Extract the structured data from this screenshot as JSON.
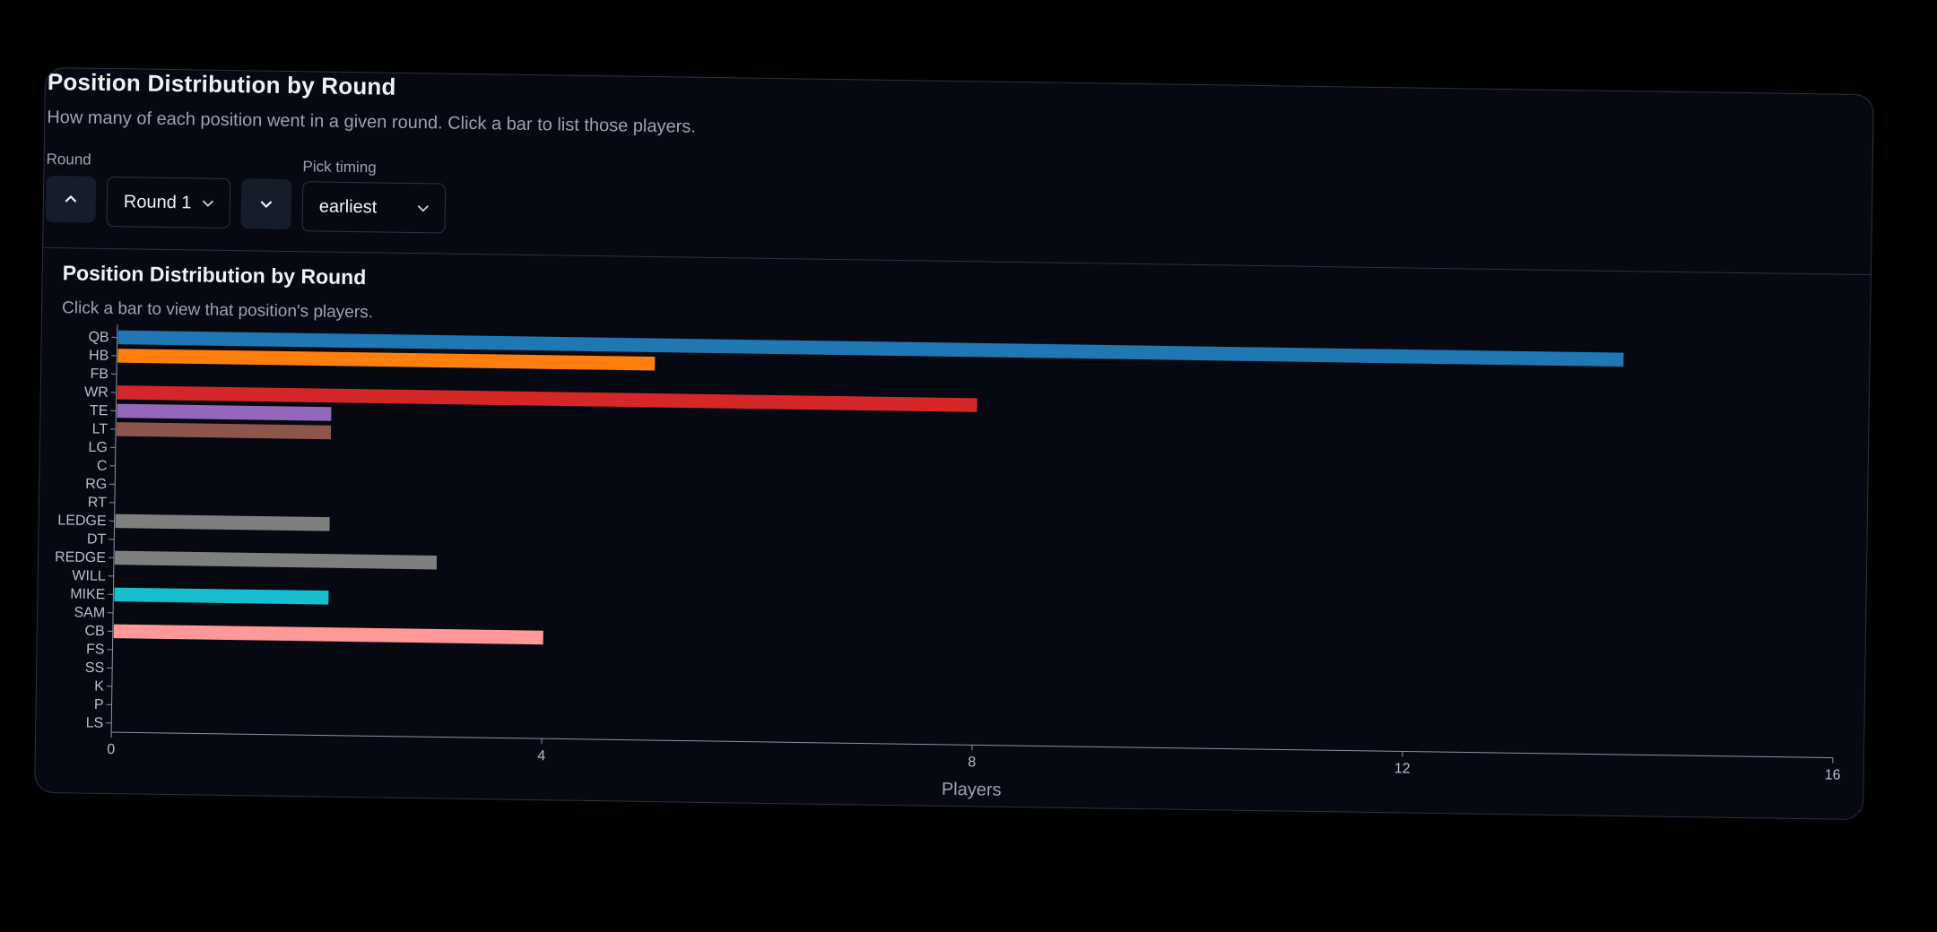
{
  "card": {
    "title": "Position Distribution by Round",
    "subtitle": "How many of each position went in a given round. Click a bar to list those players."
  },
  "controls": {
    "round_label": "Round",
    "round_value": "Round 1",
    "pick_timing_label": "Pick timing",
    "pick_timing_value": "earliest",
    "icons": {
      "prev": "chevron-up-icon",
      "next": "chevron-down-icon",
      "dropdown": "chevron-down-icon"
    }
  },
  "chart_data": {
    "type": "bar",
    "orientation": "horizontal",
    "title": "Position Distribution by Round",
    "subtitle": "Click a bar to view that position's players.",
    "xlabel": "Players",
    "ylabel": "",
    "xlim": [
      0,
      16
    ],
    "xticks": [
      0,
      4,
      8,
      12,
      16
    ],
    "grid": false,
    "categories": [
      "QB",
      "HB",
      "FB",
      "WR",
      "TE",
      "LT",
      "LG",
      "C",
      "RG",
      "RT",
      "LEDGE",
      "DT",
      "REDGE",
      "WILL",
      "MIKE",
      "SAM",
      "CB",
      "FS",
      "SS",
      "K",
      "P",
      "LS"
    ],
    "values": [
      14,
      5,
      0,
      8,
      2,
      2,
      0,
      0,
      0,
      0,
      2,
      0,
      3,
      0,
      2,
      0,
      4,
      0,
      0,
      0,
      0,
      0
    ],
    "colors": [
      "#1f77b4",
      "#ff7f0e",
      "#2ca02c",
      "#d62728",
      "#9467bd",
      "#8c564b",
      "#e377c2",
      "#7f7f7f",
      "#bcbd22",
      "#17becf",
      "#7f7f7f",
      "#bcbd22",
      "#7f7f7f",
      "#bcbd22",
      "#17becf",
      "#aec7e8",
      "#ff9896",
      "#98df8a",
      "#c5b0d5",
      "#c49c94",
      "#f7b6d2",
      "#dbdb8d"
    ]
  }
}
